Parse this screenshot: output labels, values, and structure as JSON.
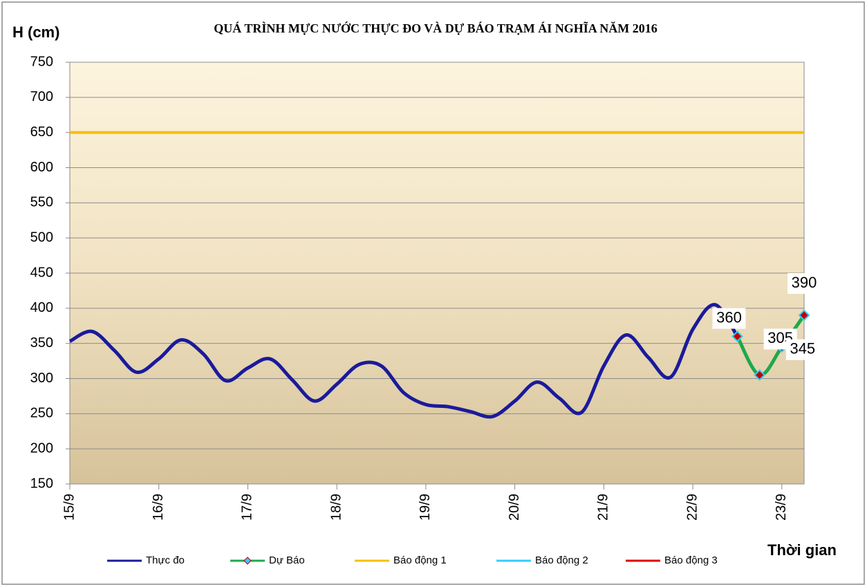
{
  "chart_data": {
    "type": "line",
    "title": "QUÁ TRÌNH MỰC NƯỚC THỰC ĐO VÀ DỰ BÁO TRẠM ÁI NGHĨA NĂM 2016",
    "y_label": "H (cm)",
    "x_label": "Thời gian",
    "xlim": [
      0,
      8.25
    ],
    "xticks": [
      {
        "value": 0,
        "label": "15/9"
      },
      {
        "value": 1,
        "label": "16/9"
      },
      {
        "value": 2,
        "label": "17/9"
      },
      {
        "value": 3,
        "label": "18/9"
      },
      {
        "value": 4,
        "label": "19/9"
      },
      {
        "value": 5,
        "label": "20/9"
      },
      {
        "value": 6,
        "label": "21/9"
      },
      {
        "value": 7,
        "label": "22/9"
      },
      {
        "value": 8,
        "label": "23/9"
      }
    ],
    "ylim": [
      150,
      750
    ],
    "yticks": [
      150,
      200,
      250,
      300,
      350,
      400,
      450,
      500,
      550,
      600,
      650,
      700,
      750
    ],
    "grid": true,
    "legend": "bottom",
    "series": [
      {
        "name": "Thực đo",
        "color": "#1a1a9c",
        "x": [
          0,
          0.25,
          0.5,
          0.75,
          1,
          1.25,
          1.5,
          1.75,
          2,
          2.25,
          2.5,
          2.75,
          3,
          3.25,
          3.5,
          3.75,
          4,
          4.25,
          4.5,
          4.75,
          5,
          5.25,
          5.5,
          5.75,
          6,
          6.25,
          6.5,
          6.75,
          7,
          7.25,
          7.5
        ],
        "values": [
          353,
          367,
          340,
          309,
          328,
          355,
          335,
          297,
          315,
          328,
          298,
          268,
          292,
          320,
          318,
          280,
          263,
          260,
          253,
          246,
          268,
          295,
          272,
          252,
          318,
          362,
          330,
          302,
          370,
          405,
          360
        ]
      },
      {
        "name": "Dự Báo",
        "color": "#1fa84a",
        "marker_color": "#c00000",
        "marker_edge": "#33ccff",
        "x": [
          7.5,
          7.75,
          8,
          8.25
        ],
        "values": [
          360,
          305,
          345,
          390
        ],
        "value_labels": [
          "360",
          "305",
          "345",
          "390"
        ]
      },
      {
        "name": "Báo động 1",
        "color": "#f5c000",
        "level": 650
      },
      {
        "name": "Báo động 2",
        "color": "#33ccff"
      },
      {
        "name": "Báo động 3",
        "color": "#e00000"
      }
    ]
  }
}
